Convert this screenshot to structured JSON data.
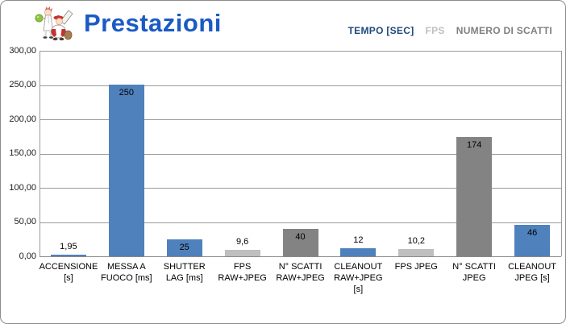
{
  "header": {
    "title": "Prestazioni",
    "logo_icon": "cartoon-photographers-mascot"
  },
  "legend": [
    {
      "label": "TEMPO [SEC]",
      "color": "#1F497D",
      "series": "tempo"
    },
    {
      "label": "FPS",
      "color": "#BFBFBF",
      "series": "fps"
    },
    {
      "label": "NUMERO DI SCATTI",
      "color": "#7F7F7F",
      "series": "scatti"
    }
  ],
  "chart_data": {
    "type": "bar",
    "title": "Prestazioni",
    "xlabel": "",
    "ylabel": "",
    "ylim": [
      0,
      300
    ],
    "grid": true,
    "legend_position": "top-right",
    "categories": [
      "ACCENSIONE [s]",
      "MESSA A FUOCO [ms]",
      "SHUTTER LAG [ms]",
      "FPS RAW+JPEG",
      "N° SCATTI RAW+JPEG",
      "CLEANOUT RAW+JPEG [s]",
      "FPS JPEG",
      "N° SCATTI JPEG",
      "CLEANOUT JPEG [s]"
    ],
    "category_lines": [
      [
        "ACCENSIONE",
        "[s]"
      ],
      [
        "MESSA A",
        "FUOCO [ms]"
      ],
      [
        "SHUTTER",
        "LAG [ms]"
      ],
      [
        "FPS",
        "RAW+JPEG"
      ],
      [
        "N° SCATTI",
        "RAW+JPEG"
      ],
      [
        "CLEANOUT",
        "RAW+JPEG",
        "[s]"
      ],
      [
        "FPS JPEG"
      ],
      [
        "N° SCATTI",
        "JPEG"
      ],
      [
        "CLEANOUT",
        "JPEG [s]"
      ]
    ],
    "values": [
      1.95,
      250,
      25,
      9.6,
      40,
      12,
      10.2,
      174,
      46
    ],
    "value_labels": [
      "1,95",
      "250",
      "25",
      "9,6",
      "40",
      "12",
      "10,2",
      "174",
      "46"
    ],
    "series_of_bar": [
      "tempo",
      "tempo",
      "tempo",
      "fps",
      "scatti",
      "tempo",
      "fps",
      "scatti",
      "tempo"
    ],
    "bar_colors": {
      "tempo": "#4F81BD",
      "fps": "#BFBFBF",
      "scatti": "#838383"
    },
    "ytick_labels": [
      "300,00",
      "250,00",
      "200,00",
      "150,00",
      "100,00",
      "50,00",
      "0,00"
    ]
  }
}
